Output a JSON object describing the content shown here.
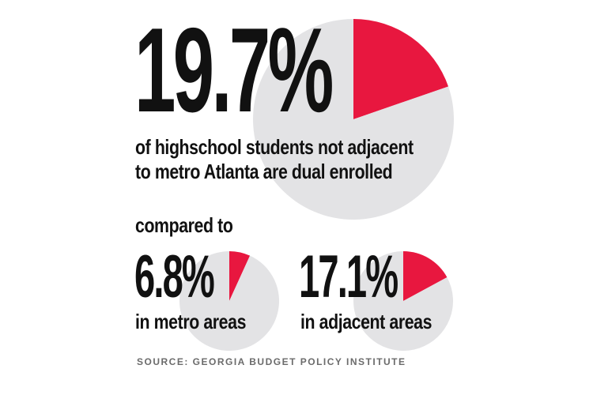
{
  "chart_data": [
    {
      "type": "pie",
      "value_label": "19.7%",
      "caption_line1": "of highschool students not adjacent",
      "caption_line2": "to metro Atlanta are dual enrolled",
      "slices": [
        {
          "value": 19.7,
          "color": "#e8173f"
        },
        {
          "value": 80.3,
          "color": "#e3e3e5"
        }
      ]
    },
    {
      "type": "pie",
      "value_label": "6.8%",
      "caption": "in metro areas",
      "slices": [
        {
          "value": 6.8,
          "color": "#e8173f"
        },
        {
          "value": 93.2,
          "color": "#e3e3e5"
        }
      ]
    },
    {
      "type": "pie",
      "value_label": "17.1%",
      "caption": "in adjacent areas",
      "slices": [
        {
          "value": 17.1,
          "color": "#e8173f"
        },
        {
          "value": 82.9,
          "color": "#e3e3e5"
        }
      ]
    }
  ],
  "compared_text": "compared to",
  "source": "SOURCE: GEORGIA BUDGET POLICY INSTITUTE",
  "colors": {
    "highlight": "#e8173f",
    "remainder": "#e3e3e5",
    "text": "#111111",
    "source": "#6b6b6b"
  }
}
